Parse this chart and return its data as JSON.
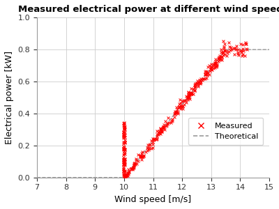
{
  "title": "Measured electrical power at different wind speeds",
  "xlabel": "Wind speed [m/s]",
  "ylabel": "Electrical power [kW]",
  "xlim": [
    7,
    15
  ],
  "ylim": [
    0,
    1
  ],
  "xticks": [
    7,
    8,
    9,
    10,
    11,
    12,
    13,
    14,
    15
  ],
  "yticks": [
    0,
    0.2,
    0.4,
    0.6,
    0.8,
    1
  ],
  "measured_color": "#ff0000",
  "theoretical_color": "#999999",
  "background_color": "#ffffff",
  "grid_color": "#cccccc",
  "cut_in_speed": 10.0,
  "rated_speed": 13.5,
  "rated_power": 0.8,
  "noise_scale": 0.015,
  "seed": 42
}
